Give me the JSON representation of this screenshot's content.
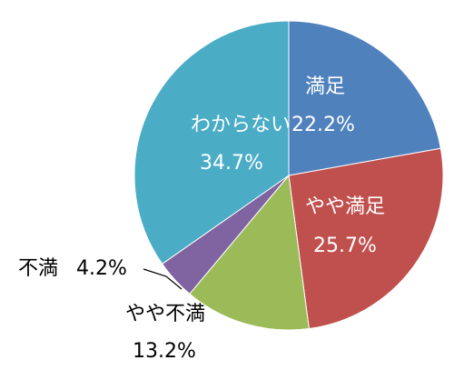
{
  "chart_data": {
    "type": "pie",
    "title": "",
    "start_angle_deg": 0,
    "direction": "clockwise",
    "slices": [
      {
        "category": "満足",
        "value": 22.2,
        "label": "22.2%",
        "color": "#4F81BD",
        "label_color": "#FFFFFF"
      },
      {
        "category": "やや満足",
        "value": 25.7,
        "label": "25.7%",
        "color": "#C0504D",
        "label_color": "#FFFFFF"
      },
      {
        "category": "やや不満",
        "value": 13.2,
        "label": "13.2%",
        "color": "#9BBB59",
        "label_color": "#000000"
      },
      {
        "category": "不満",
        "value": 4.2,
        "label": "4.2%",
        "color": "#8064A2",
        "label_color": "#000000"
      },
      {
        "category": "わからない",
        "value": 34.7,
        "label": "34.7%",
        "color": "#4BACC6",
        "label_color": "#FFFFFF"
      }
    ]
  }
}
